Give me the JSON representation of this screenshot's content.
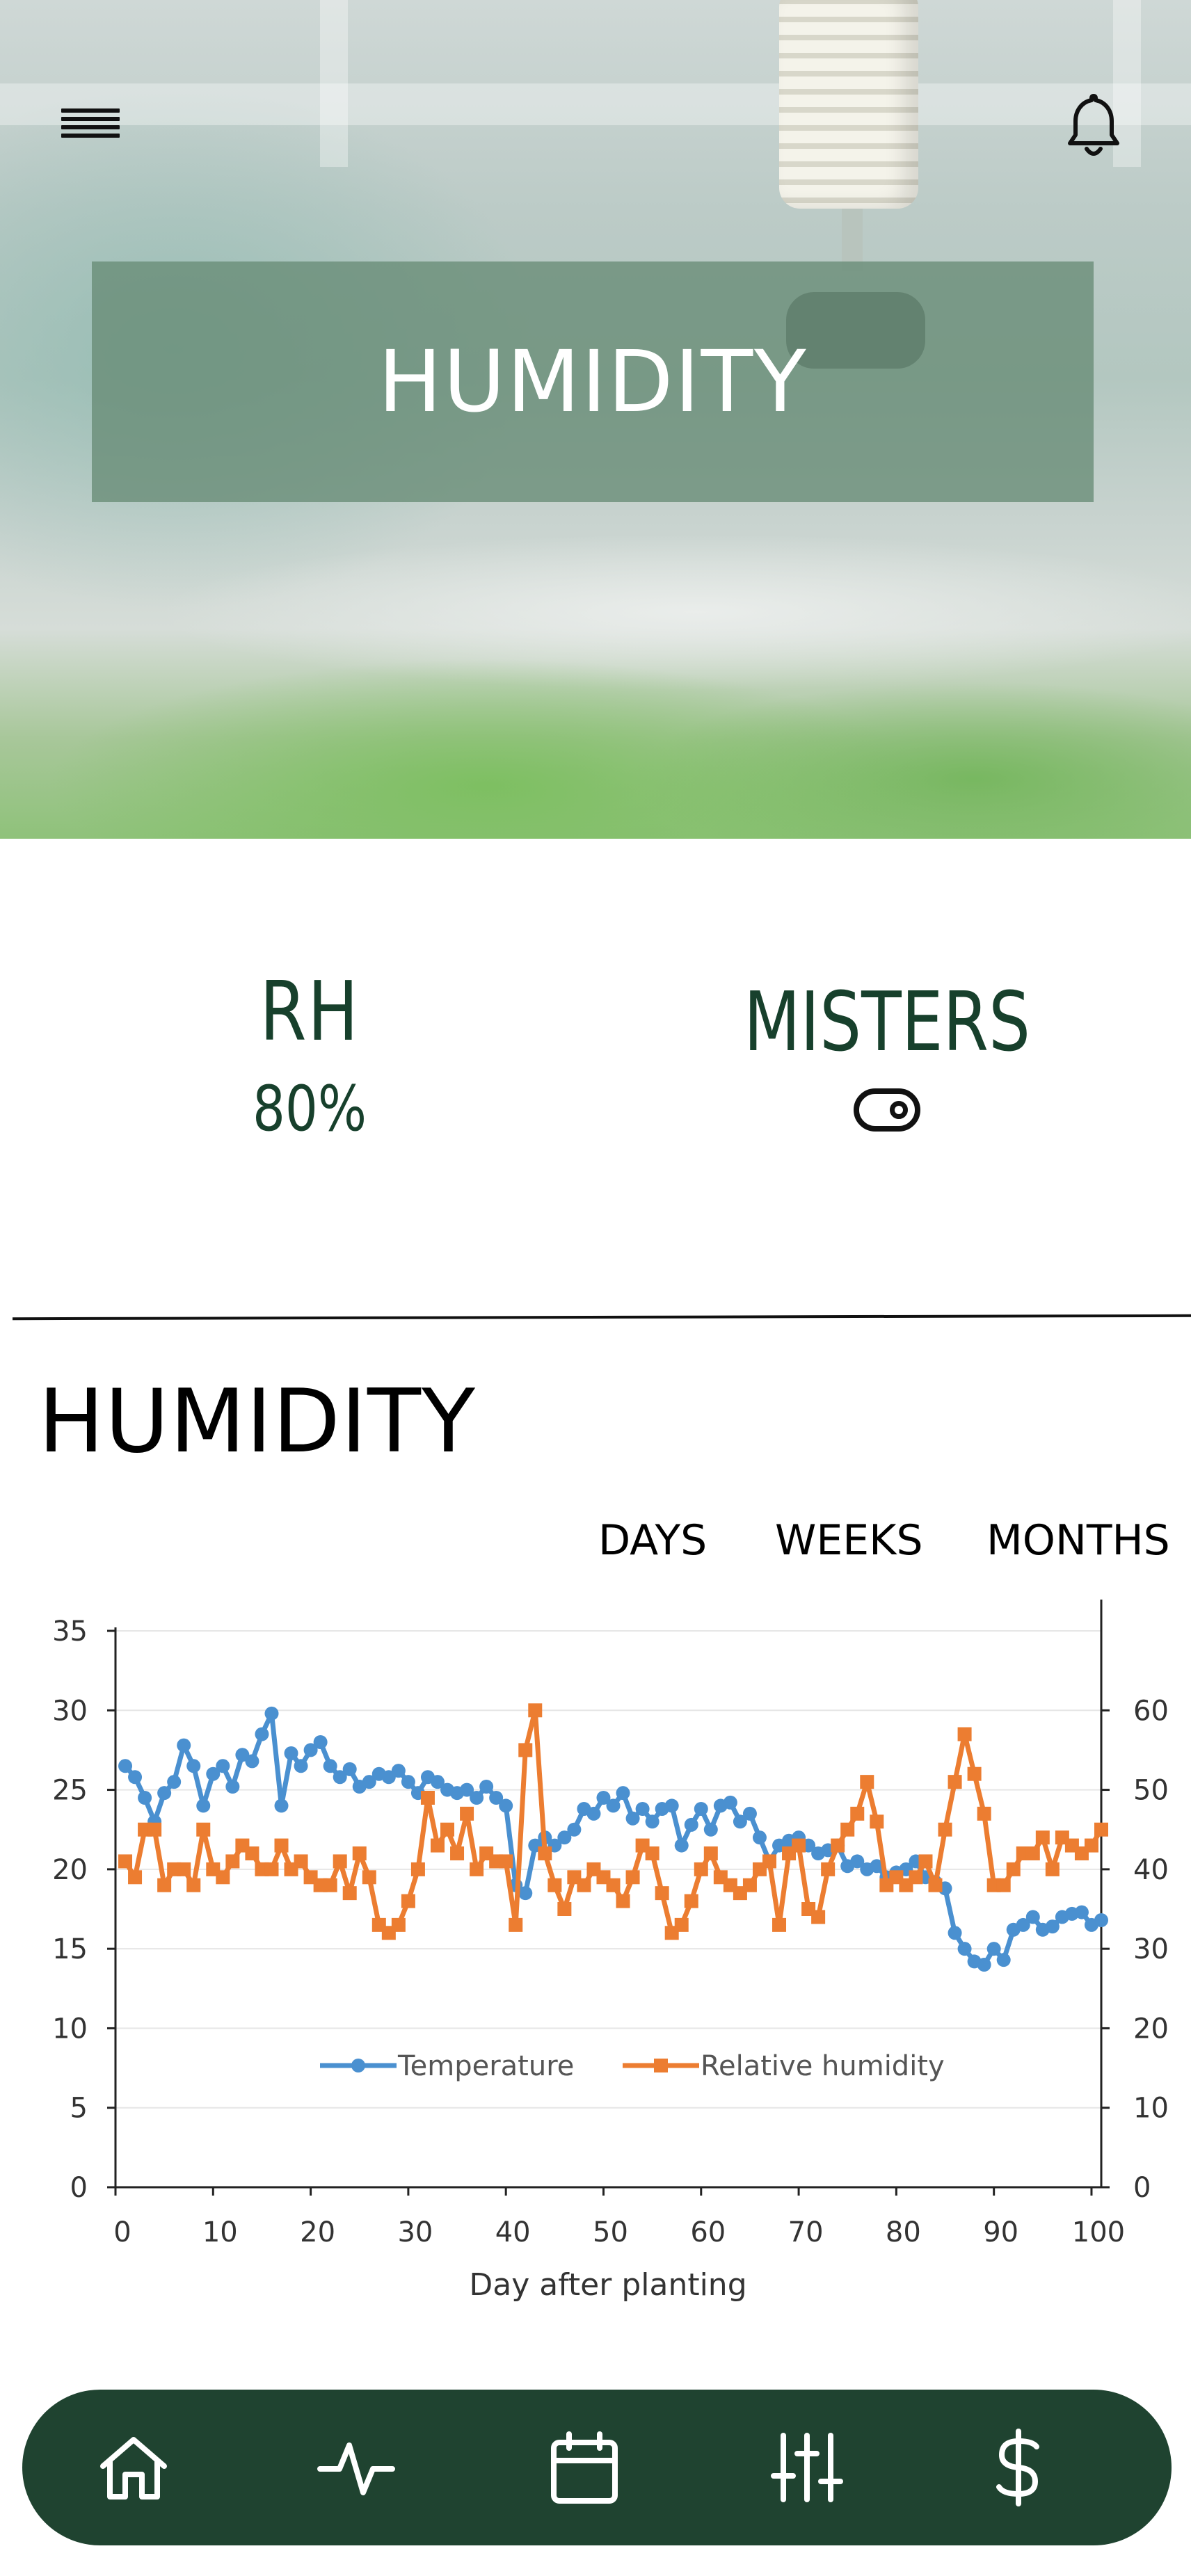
{
  "header": {
    "menu_icon": "hamburger-menu-icon",
    "notification_icon": "bell-icon",
    "title": "HUMIDITY"
  },
  "stats": {
    "rh": {
      "label": "RH",
      "value": "80%"
    },
    "misters": {
      "label": "MISTERS",
      "toggle_icon": "toggle-icon"
    }
  },
  "section": {
    "title": "HUMIDITY",
    "tabs": [
      {
        "label": "DAYS"
      },
      {
        "label": "WEEKS"
      },
      {
        "label": "MONTHS"
      }
    ]
  },
  "chart_data": {
    "type": "line",
    "title": "",
    "xlabel": "Day after planting",
    "ylabel": "",
    "y2label": "",
    "xlim": [
      0,
      101
    ],
    "ylim": [
      0,
      35
    ],
    "y2lim": [
      0,
      70
    ],
    "x_ticks": [
      0,
      10,
      20,
      30,
      40,
      50,
      60,
      70,
      80,
      90,
      100
    ],
    "y_ticks": [
      0,
      5,
      10,
      15,
      20,
      25,
      30,
      35
    ],
    "y2_ticks": [
      0,
      10,
      20,
      30,
      40,
      50,
      60
    ],
    "legend": "bottom-center",
    "series": [
      {
        "name": "Temperature",
        "axis": "left",
        "color": "#4a90d0",
        "marker": "circle",
        "x": [
          1,
          2,
          3,
          4,
          5,
          6,
          7,
          8,
          9,
          10,
          11,
          12,
          13,
          14,
          15,
          16,
          17,
          18,
          19,
          20,
          21,
          22,
          23,
          24,
          25,
          26,
          27,
          28,
          29,
          30,
          31,
          32,
          33,
          34,
          35,
          36,
          37,
          38,
          39,
          40,
          41,
          42,
          43,
          44,
          45,
          46,
          47,
          48,
          49,
          50,
          51,
          52,
          53,
          54,
          55,
          56,
          57,
          58,
          59,
          60,
          61,
          62,
          63,
          64,
          65,
          66,
          67,
          68,
          69,
          70,
          71,
          72,
          73,
          74,
          75,
          76,
          77,
          78,
          79,
          80,
          81,
          82,
          83,
          84,
          85,
          86,
          87,
          88,
          89,
          90,
          91,
          92,
          93,
          94,
          95,
          96,
          97,
          98,
          99,
          100,
          101
        ],
        "values": [
          26.5,
          25.8,
          24.5,
          23.0,
          24.8,
          25.5,
          27.8,
          26.5,
          24.0,
          26.0,
          26.5,
          25.2,
          27.2,
          26.8,
          28.5,
          29.8,
          24.0,
          27.3,
          26.5,
          27.5,
          28.0,
          26.5,
          25.8,
          26.3,
          25.2,
          25.5,
          26.0,
          25.8,
          26.2,
          25.5,
          24.8,
          25.8,
          25.5,
          25.0,
          24.8,
          25.0,
          24.5,
          25.2,
          24.5,
          24.0,
          19.0,
          18.5,
          21.5,
          22.0,
          21.5,
          22.0,
          22.5,
          23.8,
          23.5,
          24.5,
          24.0,
          24.8,
          23.2,
          23.8,
          23.0,
          23.8,
          24.0,
          21.5,
          22.8,
          23.8,
          22.5,
          24.0,
          24.2,
          23.0,
          23.5,
          22.0,
          20.5,
          21.5,
          21.8,
          22.0,
          21.5,
          21.0,
          21.2,
          21.5,
          20.2,
          20.5,
          20.0,
          20.2,
          19.5,
          19.8,
          20.0,
          20.5,
          19.5,
          19.2,
          18.8,
          16.0,
          15.0,
          14.2,
          14.0,
          15.0,
          14.3,
          16.2,
          16.5,
          17.0,
          16.2,
          16.4,
          17.0,
          17.2,
          17.3,
          16.5,
          16.8
        ]
      },
      {
        "name": "Relative humidity",
        "axis": "right",
        "color": "#ec7d31",
        "marker": "square",
        "x": [
          1,
          2,
          3,
          4,
          5,
          6,
          7,
          8,
          9,
          10,
          11,
          12,
          13,
          14,
          15,
          16,
          17,
          18,
          19,
          20,
          21,
          22,
          23,
          24,
          25,
          26,
          27,
          28,
          29,
          30,
          31,
          32,
          33,
          34,
          35,
          36,
          37,
          38,
          39,
          40,
          41,
          42,
          43,
          44,
          45,
          46,
          47,
          48,
          49,
          50,
          51,
          52,
          53,
          54,
          55,
          56,
          57,
          58,
          59,
          60,
          61,
          62,
          63,
          64,
          65,
          66,
          67,
          68,
          69,
          70,
          71,
          72,
          73,
          74,
          75,
          76,
          77,
          78,
          79,
          80,
          81,
          82,
          83,
          84,
          85,
          86,
          87,
          88,
          89,
          90,
          91,
          92,
          93,
          94,
          95,
          96,
          97,
          98,
          99,
          100,
          101
        ],
        "values": [
          41,
          39,
          45,
          45,
          38,
          40,
          40,
          38,
          45,
          40,
          39,
          41,
          43,
          42,
          40,
          40,
          43,
          40,
          41,
          39,
          38,
          38,
          41,
          37,
          42,
          39,
          33,
          32,
          33,
          36,
          40,
          49,
          43,
          45,
          42,
          47,
          40,
          42,
          41,
          41,
          33,
          55,
          60,
          42,
          38,
          35,
          39,
          38,
          40,
          39,
          38,
          36,
          39,
          43,
          42,
          37,
          32,
          33,
          36,
          40,
          42,
          39,
          38,
          37,
          38,
          40,
          41,
          33,
          42,
          43,
          35,
          34,
          40,
          43,
          45,
          47,
          51,
          46,
          38,
          39,
          38,
          39,
          41,
          38,
          45,
          51,
          57,
          52,
          47,
          38,
          38,
          40,
          42,
          42,
          44,
          40,
          44,
          43,
          42,
          43,
          45
        ]
      }
    ]
  },
  "bottom_nav": [
    {
      "name": "home",
      "icon": "home-icon"
    },
    {
      "name": "activity",
      "icon": "activity-icon"
    },
    {
      "name": "calendar",
      "icon": "calendar-icon"
    },
    {
      "name": "settings",
      "icon": "sliders-icon"
    },
    {
      "name": "finance",
      "icon": "dollar-icon"
    }
  ]
}
